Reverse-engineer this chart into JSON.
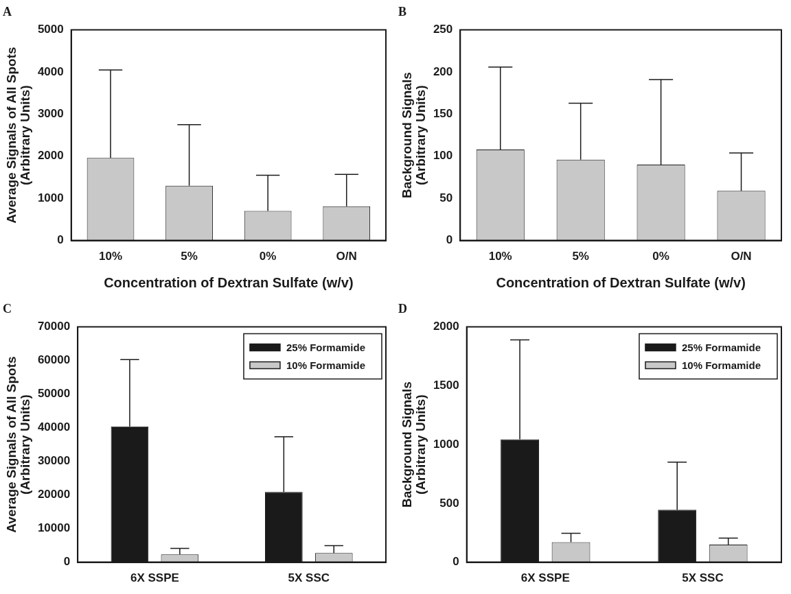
{
  "chart_data": [
    {
      "type": "bar",
      "title": "A",
      "xlabel": "Concentration of Dextran Sulfate (w/v)",
      "ylabel": "Average Signals of All Spots\n(Arbitrary Units)",
      "categories": [
        "10%",
        "5%",
        "0%",
        "O/N"
      ],
      "series": [
        {
          "color": "#c8c8c8",
          "values": [
            1960,
            1300,
            700,
            810
          ],
          "errors": [
            [
              1960,
              4050
            ],
            [
              1300,
              2750
            ],
            [
              700,
              1550
            ],
            [
              810,
              1570
            ]
          ]
        }
      ],
      "ylim": [
        0,
        5000
      ],
      "yticks": [
        0,
        1000,
        2000,
        3000,
        4000,
        5000
      ],
      "grid": false,
      "legend": false
    },
    {
      "type": "bar",
      "title": "B",
      "xlabel": "Concentration of Dextran Sulfate (w/v)",
      "ylabel": "Background Signals\n(Arbitrary Units)",
      "categories": [
        "10%",
        "5%",
        "0%",
        "O/N"
      ],
      "series": [
        {
          "color": "#c8c8c8",
          "values": [
            108,
            96,
            90,
            59
          ],
          "errors": [
            [
              108,
              206
            ],
            [
              96,
              163
            ],
            [
              90,
              191
            ],
            [
              59,
              104
            ]
          ]
        }
      ],
      "ylim": [
        0,
        250
      ],
      "yticks": [
        0,
        50,
        100,
        150,
        200,
        250
      ],
      "grid": false,
      "legend": false
    },
    {
      "type": "bar",
      "title": "C",
      "ylabel": "Average Signals of All Spots\n(Arbitrary Units)",
      "categories": [
        "6X SSPE",
        "5X SSC"
      ],
      "series": [
        {
          "name": "25% Formamide",
          "color": "#1a1a1a",
          "values": [
            40400,
            20900
          ],
          "errors": [
            [
              40400,
              60300
            ],
            [
              20900,
              37300
            ]
          ]
        },
        {
          "name": "10% Formamide",
          "color": "#c8c8c8",
          "values": [
            2300,
            2700
          ],
          "errors": [
            [
              2300,
              4100
            ],
            [
              2700,
              4900
            ]
          ]
        }
      ],
      "ylim": [
        0,
        70000
      ],
      "yticks": [
        0,
        10000,
        20000,
        30000,
        40000,
        50000,
        60000,
        70000
      ],
      "grid": false,
      "legend": "top right"
    },
    {
      "type": "bar",
      "title": "D",
      "ylabel": "Background Signals\n(Arbitrary Units)",
      "categories": [
        "6X SSPE",
        "5X SSC"
      ],
      "series": [
        {
          "name": "25% Formamide",
          "color": "#1a1a1a",
          "values": [
            1045,
            445
          ],
          "errors": [
            [
              1045,
              1890
            ],
            [
              445,
              850
            ]
          ]
        },
        {
          "name": "10% Formamide",
          "color": "#c8c8c8",
          "values": [
            170,
            150
          ],
          "errors": [
            [
              170,
              245
            ],
            [
              150,
              205
            ]
          ]
        }
      ],
      "ylim": [
        0,
        2000
      ],
      "yticks": [
        0,
        500,
        1000,
        1500,
        2000
      ],
      "grid": false,
      "legend": "top right"
    }
  ]
}
